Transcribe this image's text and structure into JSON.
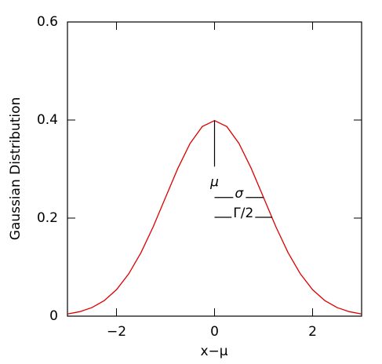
{
  "chart_data": {
    "type": "line",
    "xlabel": "x−μ",
    "ylabel": "Gaussian Distribution",
    "x": [
      -3,
      -2.75,
      -2.5,
      -2.25,
      -2,
      -1.75,
      -1.5,
      -1.25,
      -1,
      -0.75,
      -0.5,
      -0.25,
      0,
      0.25,
      0.5,
      0.75,
      1,
      1.25,
      1.5,
      1.75,
      2,
      2.25,
      2.5,
      2.75,
      3
    ],
    "series": [
      {
        "color": "#dd0000",
        "values": [
          0.0044,
          0.0091,
          0.0175,
          0.0317,
          0.054,
          0.0863,
          0.1295,
          0.1826,
          0.242,
          0.3011,
          0.3521,
          0.3867,
          0.3989,
          0.3867,
          0.3521,
          0.3011,
          0.242,
          0.1826,
          0.1295,
          0.0863,
          0.054,
          0.0317,
          0.0175,
          0.0091,
          0.0044
        ]
      }
    ],
    "xlim": [
      -3,
      3
    ],
    "ylim": [
      0,
      0.6
    ],
    "xticks": [
      {
        "value": -2,
        "label": "−2"
      },
      0,
      2
    ],
    "yticks": [
      0,
      0.2,
      0.4,
      0.6
    ],
    "annotations": [
      {
        "text": "μ",
        "x": 0,
        "y0": 0.3989,
        "y1": 0.305
      },
      {
        "text": "σ",
        "x0": 0,
        "x1": 1,
        "y": 0.242
      },
      {
        "text": "Γ/2",
        "x0": 0,
        "x1": 1.177,
        "y": 0.2016
      }
    ]
  }
}
